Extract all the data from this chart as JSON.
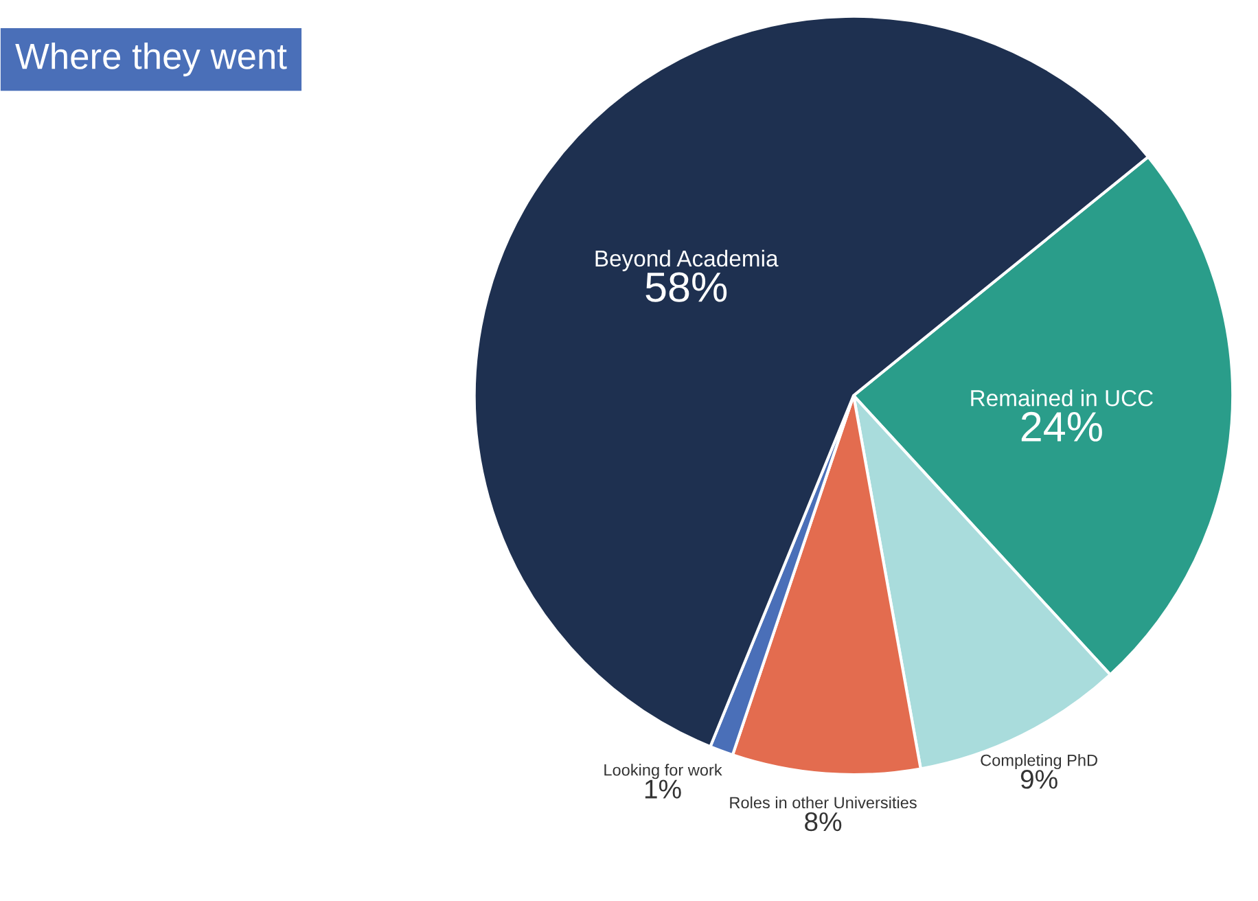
{
  "chart_data": {
    "type": "pie",
    "title": "Where they went",
    "categories": [
      "Remained in UCC",
      "Completing PhD",
      "Roles in other Universities",
      "Looking for work",
      "Beyond Academia"
    ],
    "values": [
      24,
      9,
      8,
      1,
      58
    ],
    "colors": [
      "#2a9d8a",
      "#a9dcdc",
      "#e36c4f",
      "#4a6fb8",
      "#1e3050"
    ],
    "value_labels": [
      "24%",
      "9%",
      "8%",
      "1%",
      "58%"
    ]
  }
}
